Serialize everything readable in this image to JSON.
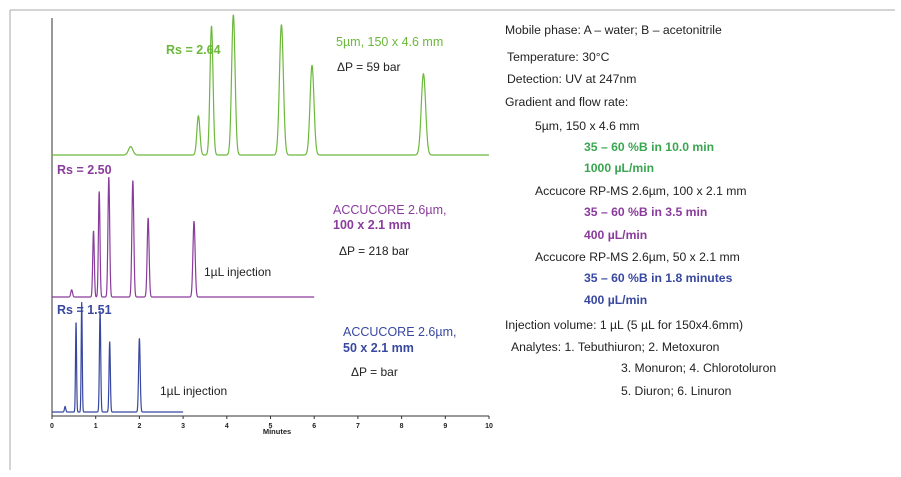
{
  "colors": {
    "green": "#6BB83B",
    "purple": "#8A3C9C",
    "blue": "#3848A0",
    "axis": "#333333",
    "border": "#999999",
    "text": "#222222",
    "green_text": "#3AA650"
  },
  "chart_data": {
    "type": "line",
    "xlabel": "Minutes",
    "xlim": [
      0,
      10
    ],
    "x_ticks": [
      "0",
      "1",
      "2",
      "3",
      "4",
      "5",
      "6",
      "7",
      "8",
      "9",
      "10"
    ],
    "series": [
      {
        "name": "5µm, 150 x 4.6 mm",
        "color_key": "green",
        "x_end": 10,
        "peaks": [
          {
            "t": 1.8,
            "h": 0.06,
            "w": 0.05
          },
          {
            "t": 3.35,
            "h": 0.28,
            "w": 0.035
          },
          {
            "t": 3.65,
            "h": 0.92,
            "w": 0.035
          },
          {
            "t": 4.15,
            "h": 1.0,
            "w": 0.04
          },
          {
            "t": 5.25,
            "h": 0.93,
            "w": 0.045
          },
          {
            "t": 5.95,
            "h": 0.64,
            "w": 0.045
          },
          {
            "t": 8.5,
            "h": 0.58,
            "w": 0.05
          }
        ]
      },
      {
        "name": "ACCUCORE 2.6µm, 100 x 2.1 mm",
        "color_key": "purple",
        "x_end": 6,
        "peaks": [
          {
            "t": 0.45,
            "h": 0.06,
            "w": 0.02
          },
          {
            "t": 0.95,
            "h": 0.55,
            "w": 0.018
          },
          {
            "t": 1.08,
            "h": 0.88,
            "w": 0.018
          },
          {
            "t": 1.3,
            "h": 1.0,
            "w": 0.02
          },
          {
            "t": 1.85,
            "h": 0.97,
            "w": 0.022
          },
          {
            "t": 2.2,
            "h": 0.66,
            "w": 0.022
          },
          {
            "t": 3.25,
            "h": 0.63,
            "w": 0.025
          }
        ]
      },
      {
        "name": "ACCUCORE 2.6µm, 50 x 2.1 mm",
        "color_key": "blue",
        "x_end": 3,
        "peaks": [
          {
            "t": 0.3,
            "h": 0.05,
            "w": 0.015
          },
          {
            "t": 0.55,
            "h": 0.82,
            "w": 0.012
          },
          {
            "t": 0.68,
            "h": 1.0,
            "w": 0.012
          },
          {
            "t": 1.1,
            "h": 0.92,
            "w": 0.015
          },
          {
            "t": 1.32,
            "h": 0.64,
            "w": 0.015
          },
          {
            "t": 2.0,
            "h": 0.67,
            "w": 0.018
          }
        ]
      }
    ]
  },
  "annotations": {
    "green": {
      "rs": "Rs = 2.64",
      "column": "5µm, 150 x 4.6 mm",
      "dp": "ΔP = 59 bar"
    },
    "purple": {
      "rs": "Rs = 2.50",
      "column_1": "ACCUCORE 2.6µm,",
      "column_2": "100 x 2.1 mm",
      "dp": "ΔP = 218 bar",
      "injection": "1µL injection"
    },
    "blue": {
      "rs": "Rs = 1.51",
      "column_1": "ACCUCORE 2.6µm,",
      "column_2": "50 x 2.1 mm",
      "dp": "ΔP =  bar",
      "injection": "1µL injection"
    }
  },
  "conditions": {
    "mobile_phase": "Mobile phase: A – water; B – acetonitrile",
    "temperature": "Temperature: 30°C",
    "detection": "Detection: UV at 247nm",
    "gradient_heading": "Gradient and flow rate:",
    "col1_name": "5µm, 150 x 4.6 mm",
    "col1_gradient": "35 – 60 %B in 10.0 min",
    "col1_flow": "1000 µL/min",
    "col2_name": "Accucore RP-MS 2.6µm, 100 x 2.1 mm",
    "col2_gradient": "35 – 60 %B in 3.5 min",
    "col2_flow": "400 µL/min",
    "col3_name": "Accucore RP-MS 2.6µm, 50 x 2.1 mm",
    "col3_gradient": "35 – 60 %B in 1.8 minutes",
    "col3_flow": "400 µL/min",
    "injection_volume": "Injection volume: 1 µL (5 µL for 150x4.6mm)",
    "analytes_1": "Analytes:  1. Tebuthiuron; 2. Metoxuron",
    "analytes_2": "3. Monuron; 4. Chlorotoluron",
    "analytes_3": "5. Diuron; 6. Linuron"
  }
}
